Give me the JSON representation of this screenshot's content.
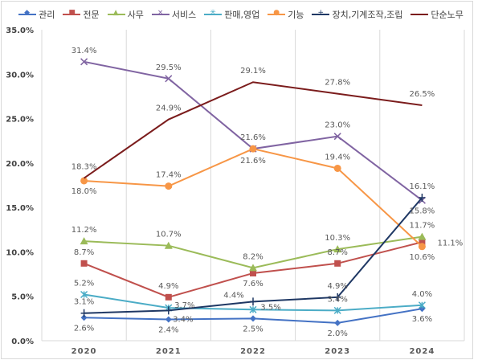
{
  "chart_data": {
    "type": "line",
    "categories": [
      "2020",
      "2021",
      "2022",
      "2023",
      "2024"
    ],
    "ylim": [
      0,
      35
    ],
    "yticks": [
      "0.0%",
      "5.0%",
      "10.0%",
      "15.0%",
      "20.0%",
      "25.0%",
      "30.0%",
      "35.0%"
    ],
    "grid": "vertical",
    "legend": "top",
    "series": [
      {
        "name": "관리",
        "color": "#4472C4",
        "marker": "diamond",
        "values": [
          2.6,
          2.4,
          2.5,
          2.0,
          3.6
        ],
        "labels": [
          "2.6%",
          "2.4%",
          "2.5%",
          "2.0%",
          "3.6%"
        ]
      },
      {
        "name": "전문",
        "color": "#C0504D",
        "marker": "square",
        "values": [
          8.7,
          4.9,
          7.6,
          8.7,
          11.1
        ],
        "labels": [
          "8.7%",
          "4.9%",
          "7.6%",
          "8.7%",
          "11.1%"
        ]
      },
      {
        "name": "사무",
        "color": "#9BBB59",
        "marker": "triangle",
        "values": [
          11.2,
          10.7,
          8.2,
          10.3,
          11.7
        ],
        "labels": [
          "11.2%",
          "10.7%",
          "8.2%",
          "10.3%",
          "11.7%"
        ]
      },
      {
        "name": "서비스",
        "color": "#8064A2",
        "marker": "x",
        "values": [
          31.4,
          29.5,
          21.6,
          23.0,
          15.8
        ],
        "labels": [
          "31.4%",
          "29.5%",
          "21.6%",
          "23.0%",
          "15.8%"
        ]
      },
      {
        "name": "판매,영업",
        "color": "#4BACC6",
        "marker": "star",
        "values": [
          5.2,
          3.7,
          3.5,
          3.4,
          4.0
        ],
        "labels": [
          "5.2%",
          "3.7%",
          "3.5%",
          "3.4%",
          "4.0%"
        ]
      },
      {
        "name": "기능",
        "color": "#F79646",
        "marker": "circle",
        "values": [
          18.0,
          17.4,
          21.6,
          19.4,
          10.6
        ],
        "labels": [
          "18.0%",
          "17.4%",
          "21.6%",
          "19.4%",
          "10.6%"
        ]
      },
      {
        "name": "장치,기계조작,조립",
        "color": "#1F3864",
        "marker": "plus",
        "values": [
          3.1,
          3.4,
          4.4,
          4.9,
          16.1
        ],
        "labels": [
          "3.1%",
          "3.4%",
          "4.4%",
          "4.9%",
          "16.1%"
        ]
      },
      {
        "name": "단순노무",
        "color": "#7B1C1C",
        "marker": "none",
        "values": [
          18.3,
          24.9,
          29.1,
          27.8,
          26.5
        ],
        "labels": [
          "18.3%",
          "24.9%",
          "29.1%",
          "27.8%",
          "26.5%"
        ]
      }
    ]
  }
}
